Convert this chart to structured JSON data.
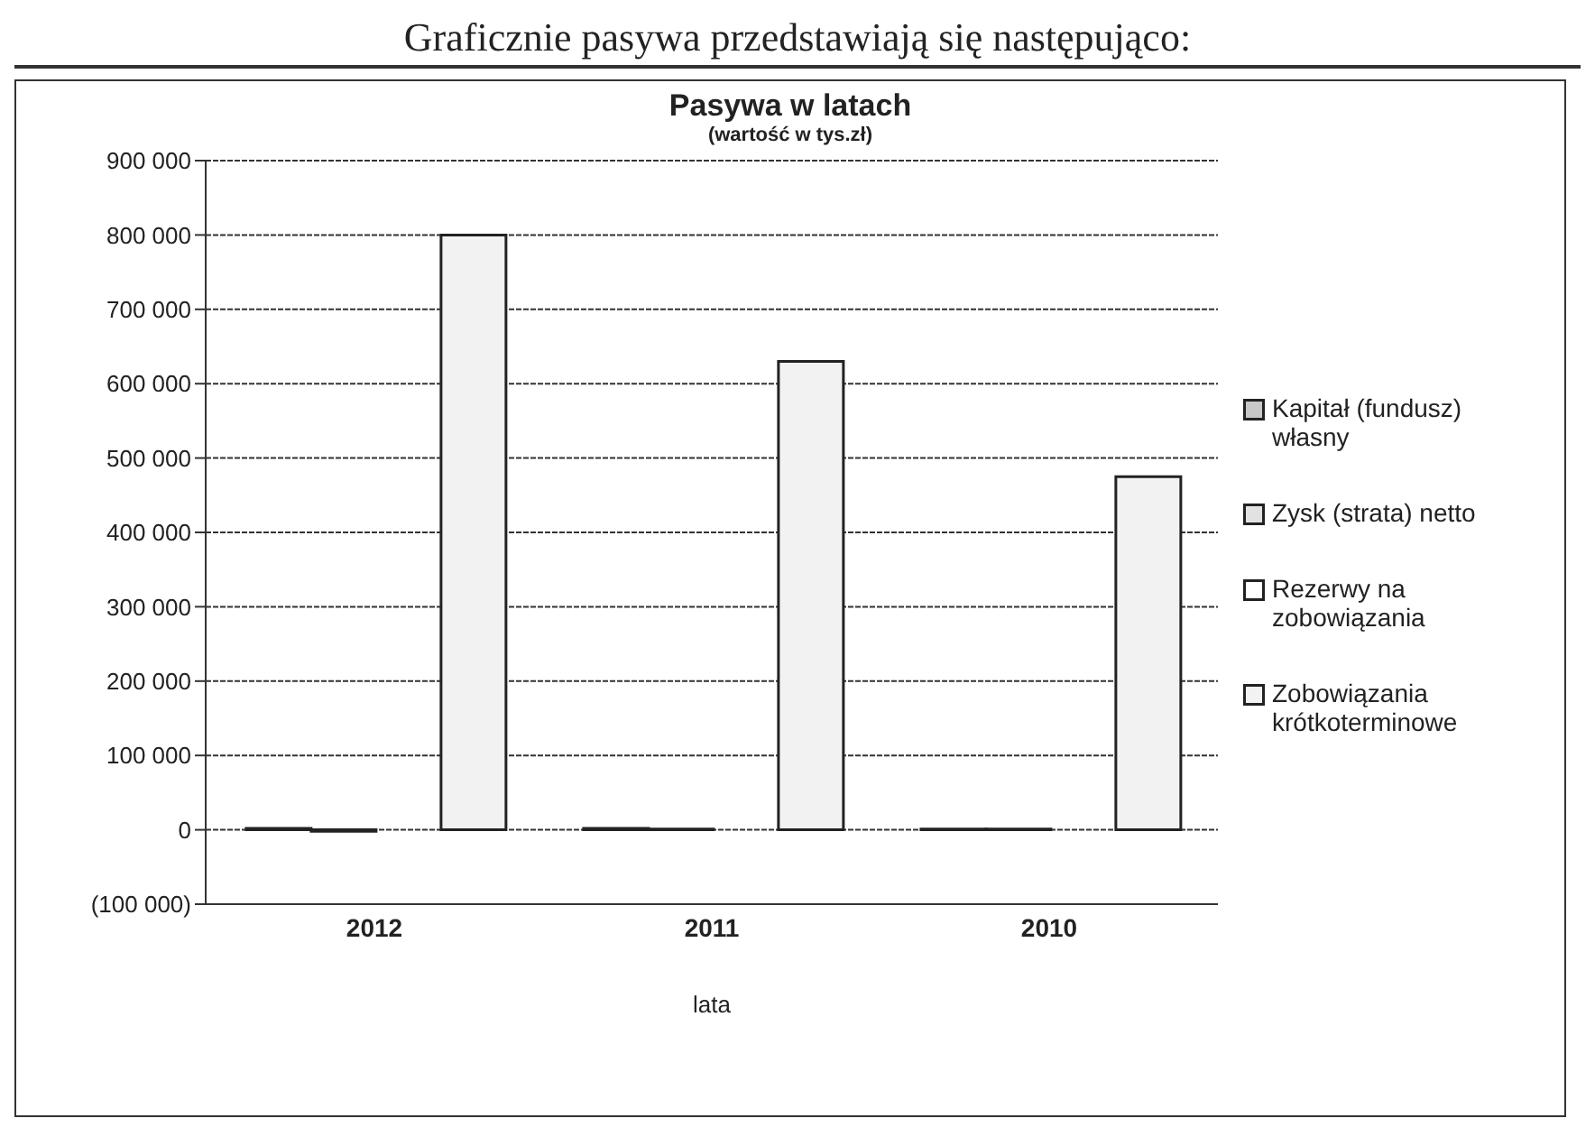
{
  "chart_data": {
    "type": "bar",
    "title": "Pasywa w latach",
    "subtitle": "(wartość w tys.zł)",
    "xlabel": "lata",
    "annotations": [
      "Graficznie pasywa przedstawiają się następująco:"
    ],
    "categories": [
      "2012",
      "2011",
      "2010"
    ],
    "series": [
      {
        "name": "Kapitał (fundusz) własny",
        "color": "#c8c8c8",
        "values": [
          2000,
          2000,
          1000
        ]
      },
      {
        "name": "Zysk (strata) netto",
        "color": "#e2e2e2",
        "values": [
          -2000,
          1000,
          1000
        ]
      },
      {
        "name": "Rezerwy na zobowiązania",
        "color": "#ffffff",
        "values": [
          0,
          0,
          0
        ]
      },
      {
        "name": "Zobowiązania krótkoterminowe",
        "color": "#f2f2f2",
        "values": [
          800000,
          630000,
          475000
        ]
      }
    ],
    "ylim": [
      -100000,
      900000
    ],
    "yticks": [
      {
        "value": -100000,
        "label": "(100 000)"
      },
      0,
      {
        "value": 100000,
        "label": "100 000"
      },
      {
        "value": 200000,
        "label": "200 000"
      },
      {
        "value": 300000,
        "label": "300 000"
      },
      {
        "value": 400000,
        "label": "400 000"
      },
      {
        "value": 500000,
        "label": "500 000"
      },
      {
        "value": 600000,
        "label": "600 000"
      },
      {
        "value": 700000,
        "label": "700 000"
      },
      {
        "value": 800000,
        "label": "800 000"
      },
      {
        "value": 900000,
        "label": "900 000"
      }
    ],
    "grid": "y",
    "legend": "right"
  }
}
